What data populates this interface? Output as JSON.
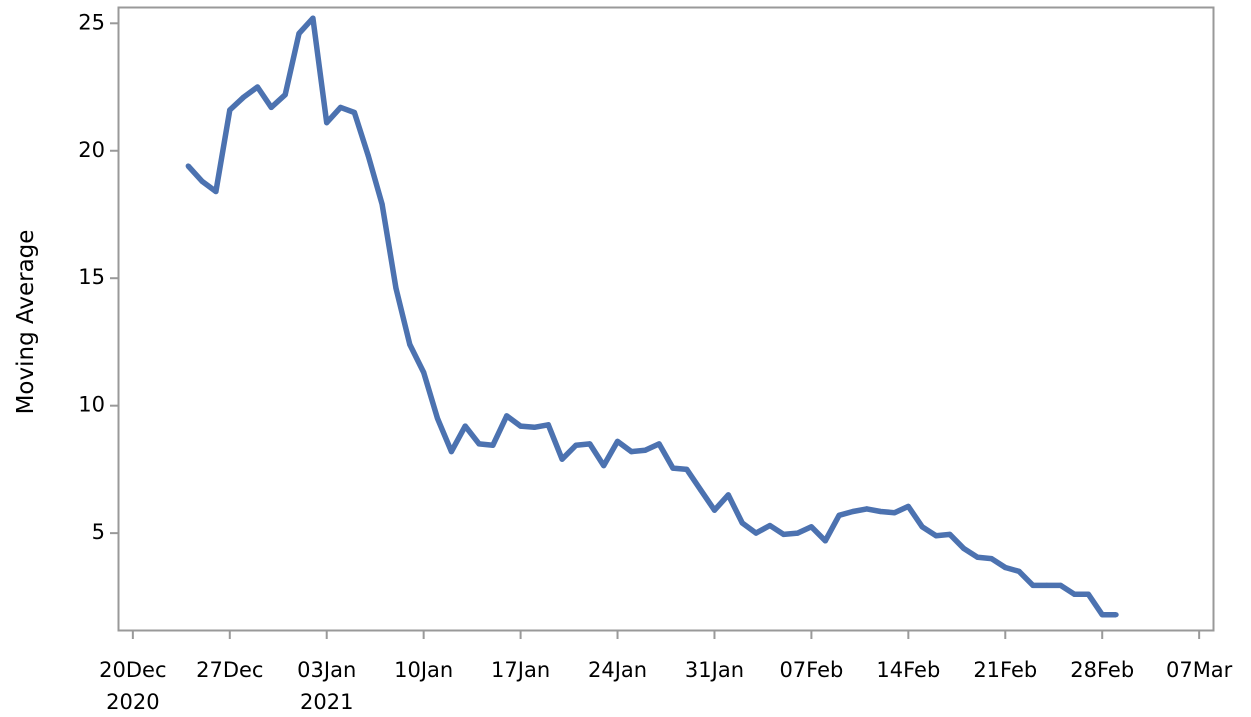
{
  "chart_data": {
    "type": "line",
    "title": "",
    "xlabel": "",
    "ylabel": "Moving Average",
    "x_axis": {
      "type": "date",
      "range": [
        "2020-12-19",
        "2021-03-08"
      ],
      "ticks": [
        {
          "date": "2020-12-20",
          "label": "20Dec",
          "sublabel": "2020"
        },
        {
          "date": "2020-12-27",
          "label": "27Dec",
          "sublabel": ""
        },
        {
          "date": "2021-01-03",
          "label": "03Jan",
          "sublabel": "2021"
        },
        {
          "date": "2021-01-10",
          "label": "10Jan",
          "sublabel": ""
        },
        {
          "date": "2021-01-17",
          "label": "17Jan",
          "sublabel": ""
        },
        {
          "date": "2021-01-24",
          "label": "24Jan",
          "sublabel": ""
        },
        {
          "date": "2021-01-31",
          "label": "31Jan",
          "sublabel": ""
        },
        {
          "date": "2021-02-07",
          "label": "07Feb",
          "sublabel": ""
        },
        {
          "date": "2021-02-14",
          "label": "14Feb",
          "sublabel": ""
        },
        {
          "date": "2021-02-21",
          "label": "21Feb",
          "sublabel": ""
        },
        {
          "date": "2021-02-28",
          "label": "28Feb",
          "sublabel": ""
        },
        {
          "date": "2021-03-07",
          "label": "07Mar",
          "sublabel": ""
        }
      ]
    },
    "y_axis": {
      "range": [
        1.2,
        25.6
      ],
      "ticks": [
        5,
        10,
        15,
        20,
        25
      ]
    },
    "grid": false,
    "legend": "none",
    "line_color": "#4c72b0",
    "series": [
      {
        "x": [
          "2020-12-24",
          "2020-12-25",
          "2020-12-26",
          "2020-12-27",
          "2020-12-28",
          "2020-12-29",
          "2020-12-30",
          "2020-12-31",
          "2021-01-01",
          "2021-01-02",
          "2021-01-03",
          "2021-01-04",
          "2021-01-05",
          "2021-01-06",
          "2021-01-07",
          "2021-01-08",
          "2021-01-09",
          "2021-01-10",
          "2021-01-11",
          "2021-01-12",
          "2021-01-13",
          "2021-01-14",
          "2021-01-15",
          "2021-01-16",
          "2021-01-17",
          "2021-01-18",
          "2021-01-19",
          "2021-01-20",
          "2021-01-21",
          "2021-01-22",
          "2021-01-23",
          "2021-01-24",
          "2021-01-25",
          "2021-01-26",
          "2021-01-27",
          "2021-01-28",
          "2021-01-29",
          "2021-01-30",
          "2021-01-31",
          "2021-02-01",
          "2021-02-02",
          "2021-02-03",
          "2021-02-04",
          "2021-02-05",
          "2021-02-06",
          "2021-02-07",
          "2021-02-08",
          "2021-02-09",
          "2021-02-10",
          "2021-02-11",
          "2021-02-12",
          "2021-02-13",
          "2021-02-14",
          "2021-02-15",
          "2021-02-16",
          "2021-02-17",
          "2021-02-18",
          "2021-02-19",
          "2021-02-20",
          "2021-02-21",
          "2021-02-22",
          "2021-02-23",
          "2021-02-24",
          "2021-02-25",
          "2021-02-26",
          "2021-02-27",
          "2021-02-28",
          "2021-03-01"
        ],
        "y": [
          19.4,
          18.8,
          18.4,
          21.6,
          22.1,
          22.5,
          21.7,
          22.2,
          24.6,
          25.2,
          21.1,
          21.7,
          21.5,
          19.8,
          17.9,
          14.6,
          12.4,
          11.3,
          9.5,
          8.2,
          9.2,
          8.5,
          8.45,
          9.6,
          9.2,
          9.15,
          9.25,
          7.9,
          8.45,
          8.5,
          7.65,
          8.6,
          8.2,
          8.25,
          8.5,
          7.55,
          7.5,
          6.7,
          5.9,
          6.5,
          5.4,
          5.0,
          5.3,
          4.95,
          5.0,
          5.25,
          4.7,
          5.7,
          5.85,
          5.95,
          5.85,
          5.8,
          6.05,
          5.25,
          4.9,
          4.95,
          4.4,
          4.05,
          4.0,
          3.65,
          3.5,
          2.95,
          2.95,
          2.95,
          2.6,
          2.6,
          1.8,
          1.8
        ]
      }
    ]
  }
}
